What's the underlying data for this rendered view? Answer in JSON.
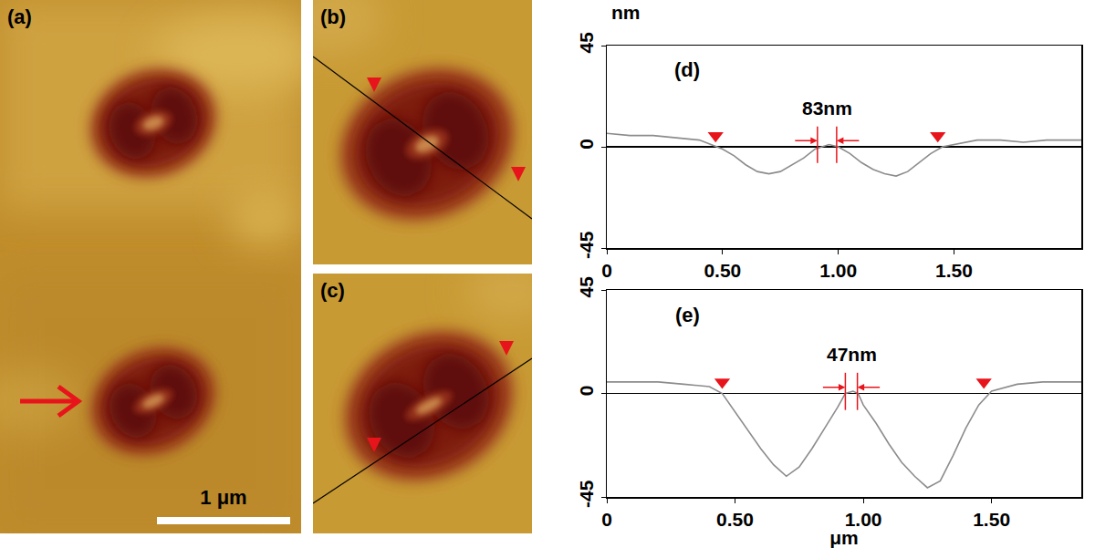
{
  "panels": [
    {
      "label": "(a)",
      "scale_bar": "1 μm"
    },
    {
      "label": "(b)"
    },
    {
      "label": "(c)"
    }
  ],
  "chart_data": [
    {
      "type": "line",
      "label": "(d)",
      "y_label": "nm",
      "x": [
        0,
        0.1,
        0.2,
        0.3,
        0.4,
        0.45,
        0.5,
        0.55,
        0.6,
        0.65,
        0.7,
        0.75,
        0.8,
        0.85,
        0.9,
        0.93,
        0.96,
        1.0,
        1.05,
        1.1,
        1.15,
        1.2,
        1.25,
        1.3,
        1.35,
        1.4,
        1.45,
        1.5,
        1.6,
        1.7,
        1.8,
        1.9,
        2.0,
        2.05
      ],
      "values": [
        6,
        5,
        5,
        4,
        3,
        1,
        -1,
        -4,
        -8,
        -11,
        -12,
        -11,
        -8,
        -5,
        -1,
        0,
        1,
        0,
        -3,
        -7,
        -10,
        -12,
        -13,
        -11,
        -7,
        -3,
        0,
        1,
        3,
        3,
        2,
        3,
        3,
        3
      ],
      "color": "#8c8c8c",
      "markers": {
        "x": [
          0.47,
          1.43
        ],
        "y": [
          5,
          5
        ],
        "color": "#e8141b",
        "marker": "triangle-down"
      },
      "gap": {
        "text": "83nm",
        "x0": 0.91,
        "x1": 0.993,
        "color": "#e8141b"
      },
      "xlim": [
        0,
        2.05
      ],
      "xticks": [
        0,
        {
          "value": 0.5,
          "label": "0.50"
        },
        {
          "value": 1.0,
          "label": "1.00"
        },
        {
          "value": 1.5,
          "label": "1.50"
        }
      ],
      "ylim": [
        -45,
        45
      ],
      "yticks": [
        -45,
        0,
        45
      ],
      "grid": false
    },
    {
      "type": "line",
      "label": "(e)",
      "x_label": "μm",
      "x": [
        0,
        0.1,
        0.2,
        0.3,
        0.4,
        0.45,
        0.5,
        0.55,
        0.6,
        0.65,
        0.7,
        0.75,
        0.8,
        0.85,
        0.9,
        0.93,
        0.96,
        0.98,
        1.0,
        1.05,
        1.1,
        1.15,
        1.2,
        1.25,
        1.3,
        1.35,
        1.4,
        1.45,
        1.5,
        1.6,
        1.7,
        1.8,
        1.85
      ],
      "values": [
        5,
        5,
        5,
        4,
        3,
        0,
        -8,
        -16,
        -24,
        -31,
        -36,
        -32,
        -24,
        -15,
        -6,
        0,
        1,
        0,
        -5,
        -13,
        -22,
        -30,
        -36,
        -41,
        -38,
        -27,
        -15,
        -5,
        1,
        4,
        5,
        5,
        5
      ],
      "color": "#8c8c8c",
      "markers": {
        "x": [
          0.45,
          1.47
        ],
        "y": [
          5,
          5
        ],
        "color": "#e8141b",
        "marker": "triangle-down"
      },
      "gap": {
        "text": "47nm",
        "x0": 0.93,
        "x1": 0.977,
        "color": "#e8141b"
      },
      "xlim": [
        0,
        1.85
      ],
      "xticks": [
        0,
        {
          "value": 0.5,
          "label": "0.50"
        },
        {
          "value": 1.0,
          "label": "1.00"
        },
        {
          "value": 1.5,
          "label": "1.50"
        }
      ],
      "ylim": [
        -45,
        45
      ],
      "yticks": [
        -45,
        0,
        45
      ],
      "grid": false
    }
  ]
}
